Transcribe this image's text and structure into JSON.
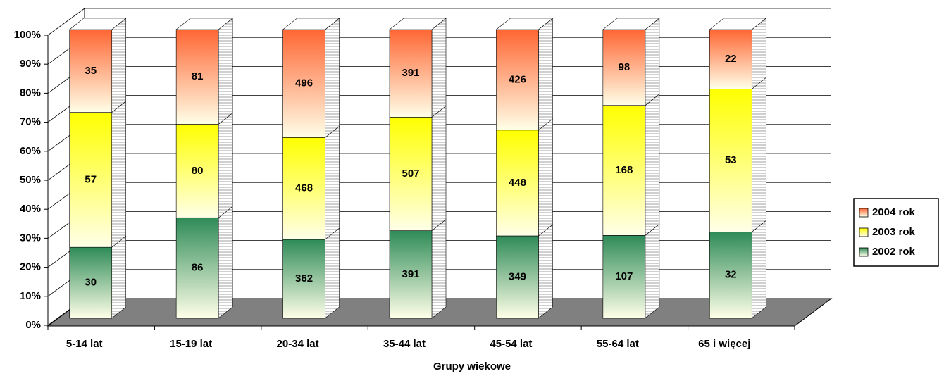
{
  "chart_data": {
    "type": "stacked_percent_bar",
    "x_label": "Grupy wiekowe",
    "categories": [
      "5-14 lat",
      "15-19 lat",
      "20-34 lat",
      "35-44 lat",
      "45-54 lat",
      "55-64 lat",
      "65 i więcej"
    ],
    "series": [
      {
        "name": "2002 rok",
        "color": "#2e8b57",
        "values": [
          30,
          86,
          362,
          391,
          349,
          107,
          32
        ]
      },
      {
        "name": "2003 rok",
        "color": "#ffff00",
        "values": [
          57,
          80,
          468,
          507,
          448,
          168,
          53
        ]
      },
      {
        "name": "2004 rok",
        "color": "#ff6633",
        "values": [
          35,
          81,
          496,
          391,
          426,
          98,
          22
        ]
      }
    ],
    "ylim": [
      0,
      100
    ],
    "yticks": [
      {
        "value": 0,
        "label": "0%"
      },
      {
        "value": 10,
        "label": "10%"
      },
      {
        "value": 20,
        "label": "20%"
      },
      {
        "value": 30,
        "label": "30%"
      },
      {
        "value": 40,
        "label": "40%"
      },
      {
        "value": 50,
        "label": "50%"
      },
      {
        "value": 60,
        "label": "60%"
      },
      {
        "value": 70,
        "label": "70%"
      },
      {
        "value": 80,
        "label": "80%"
      },
      {
        "value": 90,
        "label": "90%"
      },
      {
        "value": 100,
        "label": "100%"
      }
    ],
    "grid": true,
    "legend": "right"
  }
}
